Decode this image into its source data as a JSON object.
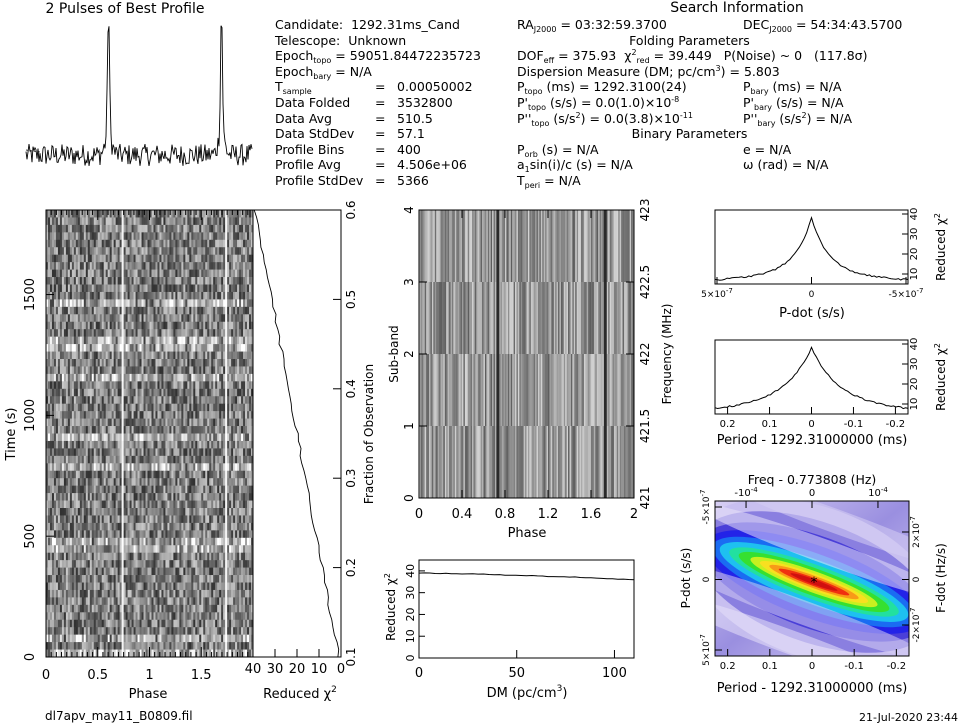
{
  "pulse_title": "2 Pulses of Best Profile",
  "candidate_info": {
    "candidate": {
      "label": "Candidate:",
      "value": "1292.31ms_Cand"
    },
    "telescope": {
      "label": "Telescope:",
      "value": "Unknown"
    },
    "epoch_topo": {
      "label": "Epoch",
      "sub": "topo",
      "value": "= 59051.84472235723"
    },
    "epoch_bary": {
      "label": "Epoch",
      "sub": "bary",
      "value": "= N/A"
    },
    "rows": [
      {
        "label": "T",
        "sub": "sample",
        "value": "0.00050002"
      },
      {
        "label": "Data Folded",
        "sub": "",
        "value": "3532800"
      },
      {
        "label": "Data Avg",
        "sub": "",
        "value": "510.5"
      },
      {
        "label": "Data StdDev",
        "sub": "",
        "value": "57.1"
      },
      {
        "label": "Profile Bins",
        "sub": "",
        "value": "400"
      },
      {
        "label": "Profile Avg",
        "sub": "",
        "value": "4.506e+06"
      },
      {
        "label": "Profile StdDev",
        "sub": "",
        "value": "5366"
      }
    ]
  },
  "search_info": {
    "title": "Search Information",
    "ra": "= 03:32:59.3700",
    "dec": "= 54:34:43.5700",
    "folding_title": "Folding Parameters",
    "dof": "= 375.93",
    "chi2": "= 39.449",
    "pnoise": "P(Noise) ~ 0",
    "sigma": "(117.8σ)",
    "dm": "Dispersion Measure (DM; pc/cm",
    "dm_value": ") = 5.803",
    "ptopo": "(ms)  =  1292.3100(24)",
    "pdtopo": "(s/s) = 0.0(1.0)×10",
    "pdtopo_exp": "-8",
    "pddtopo": "(s/s",
    "pddtopo_val": ") = 0.0(3.8)×10",
    "pddtopo_exp": "-11",
    "pbary": "(ms) = N/A",
    "pdbary": "(s/s) = N/A",
    "pddbary": ") = N/A",
    "binary_title": "Binary Parameters",
    "porb": "(s) = N/A",
    "asini": "sin(i)/c (s) = N/A",
    "tperi": "= N/A",
    "e": "e = N/A",
    "omega": "ω (rad) = N/A"
  },
  "phase_time": {
    "xlabel": "Phase",
    "ylabel": "Time (s)",
    "xticks": [
      "0",
      "0.5",
      "1",
      "1.5"
    ],
    "yticks": [
      "0",
      "500",
      "1000",
      "1500"
    ],
    "chi_xlabel": "Reduced χ",
    "chi_ticks": [
      "40",
      "30",
      "20",
      "10",
      "0"
    ],
    "frac_label": "Fraction of Observation",
    "frac_ticks": [
      "0.1",
      "0.2",
      "0.3",
      "0.4",
      "0.5",
      "0.6"
    ]
  },
  "subband": {
    "xlabel": "Phase",
    "ylabel": "Sub-band",
    "rlabel": "Frequency (MHz)",
    "xticks": [
      "0",
      "0.4",
      "0.8",
      "1.2",
      "1.6",
      "2"
    ],
    "yticks": [
      "0",
      "1",
      "2",
      "3",
      "4"
    ],
    "rticks": [
      "421",
      "421.5",
      "422",
      "422.5",
      "423"
    ]
  },
  "dm_plot": {
    "xlabel": "DM (pc/cm",
    "ylabel": "Reduced χ",
    "xticks": [
      "0",
      "50",
      "100"
    ],
    "yticks": [
      "0",
      "10",
      "20",
      "30",
      "40"
    ]
  },
  "pdot_plot": {
    "xlabel": "P-dot (s/s)",
    "ylabel": "Reduced χ",
    "xticks": [
      "5×10",
      "0",
      "-5×10"
    ],
    "xexp": "-7",
    "yticks": [
      "10",
      "20",
      "30",
      "40"
    ]
  },
  "period_plot": {
    "xlabel": "Period - 1292.31000000 (ms)",
    "ylabel": "Reduced χ",
    "xticks": [
      "0.2",
      "0.1",
      "0",
      "-0.1",
      "-0.2"
    ],
    "yticks": [
      "10",
      "20",
      "30",
      "40"
    ]
  },
  "ppdot_plot": {
    "top_label": "Freq - 0.773808 (Hz)",
    "top_ticks": [
      "-10",
      "0",
      "10"
    ],
    "top_exp": "-4",
    "xlabel": "Period - 1292.31000000 (ms)",
    "ylabel": "P-dot (s/s)",
    "rlabel": "F-dot (Hz/s)",
    "xticks": [
      "0.2",
      "0.1",
      "0",
      "-0.1",
      "-0.2"
    ],
    "yticks": [
      "-5×10",
      "0",
      "5×10"
    ],
    "yexp": "-7",
    "rticks": [
      "2×10",
      "0",
      "-2×10"
    ],
    "rexp": "-7"
  },
  "footer": {
    "filename": "dl7apv_may11_B0809.fil",
    "date": "21-Jul-2020 23:44"
  },
  "chart_data": [
    {
      "type": "line",
      "name": "profile",
      "description": "2 pulses of best profile",
      "x": [
        0,
        2
      ],
      "peaks_phase": [
        0.73,
        1.73
      ]
    },
    {
      "type": "heatmap",
      "name": "phase-time",
      "xlim": [
        0,
        2
      ],
      "ylim": [
        0,
        1850
      ]
    },
    {
      "type": "line",
      "name": "reduced-chi2-vs-time",
      "xlim": [
        40,
        0
      ],
      "ylim": [
        0.1,
        0.6
      ]
    },
    {
      "type": "heatmap",
      "name": "phase-subband",
      "xlim": [
        0,
        2
      ],
      "ylim": [
        0,
        4
      ]
    },
    {
      "type": "line",
      "name": "dm-chi2",
      "x": [
        0,
        110
      ],
      "y": [
        39,
        36
      ],
      "ylim": [
        0,
        45
      ]
    },
    {
      "type": "line",
      "name": "pdot-chi2",
      "ylim": [
        5,
        42
      ],
      "peak": 39
    },
    {
      "type": "line",
      "name": "period-chi2",
      "ylim": [
        5,
        42
      ],
      "peak": 38
    },
    {
      "type": "heatmap",
      "name": "ppdot",
      "xlim": [
        0.23,
        -0.23
      ],
      "ylim": [
        5e-07,
        -5e-07
      ]
    }
  ]
}
